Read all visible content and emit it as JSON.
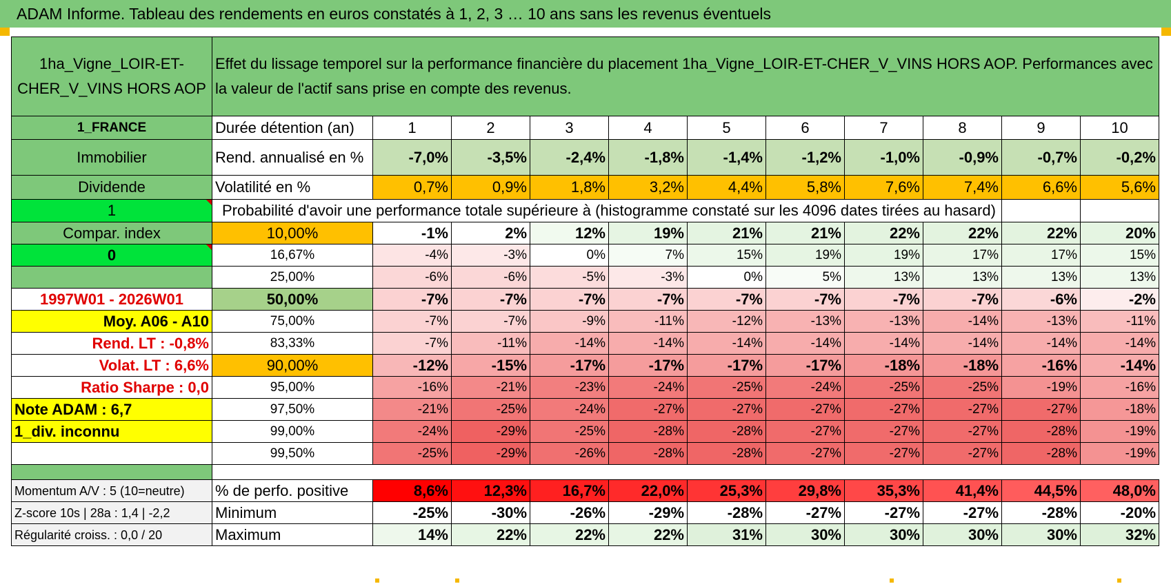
{
  "page_title": "ADAM Informe. Tableau des rendements en euros constatés à 1, 2, 3 … 10 ans sans les revenus éventuels",
  "asset_name": "1ha_Vigne_LOIR-ET-CHER_V_VINS HORS AOP",
  "header_text": "Effet du lissage temporel sur la performance financière du placement 1ha_Vigne_LOIR-ET-CHER_V_VINS HORS AOP. Performances avec la valeur de l'actif sans prise en compte des revenus.",
  "side": {
    "country": "1_FRANCE",
    "category": "Immobilier",
    "income": "Dividende",
    "flag1": "1",
    "compar": "Compar. index",
    "flag0": "0",
    "period": "1997W01 - 2026W01",
    "moy": "Moy. A06 - A10",
    "rend_lt": "Rend. LT :   -0,8%",
    "volat_lt": "Volat. LT :   6,6%",
    "sharpe": "Ratio Sharpe :    0,0",
    "note": "Note ADAM : 6,7",
    "div": "1_div. inconnu"
  },
  "rows": {
    "duration_label": "Durée détention (an)",
    "years": [
      "1",
      "2",
      "3",
      "4",
      "5",
      "6",
      "7",
      "8",
      "9",
      "10"
    ],
    "rend_label": "Rend. annualisé en %",
    "rend": [
      "-7,0%",
      "-3,5%",
      "-2,4%",
      "-1,8%",
      "-1,4%",
      "-1,2%",
      "-1,0%",
      "-0,9%",
      "-0,7%",
      "-0,2%"
    ],
    "vol_label": "Volatilité en %",
    "vol": [
      "0,7%",
      "0,9%",
      "1,8%",
      "3,2%",
      "4,4%",
      "5,8%",
      "7,6%",
      "7,4%",
      "6,6%",
      "5,6%"
    ],
    "prob_title": "Probabilité d'avoir une performance totale supérieure à (histogramme constaté sur les 4096 dates tirées au hasard)"
  },
  "quantiles": [
    {
      "label": "10,00%",
      "values": [
        "-1%",
        "2%",
        "12%",
        "19%",
        "21%",
        "21%",
        "22%",
        "22%",
        "22%",
        "20%"
      ],
      "colors": [
        "#ffffff",
        "#ffffff",
        "#f1faef",
        "#e6f5e3",
        "#e4f4e1",
        "#e4f4e1",
        "#e3f3df",
        "#e3f3df",
        "#e3f3df",
        "#e5f5e2"
      ]
    },
    {
      "label": "16,67%",
      "values": [
        "-4%",
        "-3%",
        "0%",
        "7%",
        "15%",
        "19%",
        "19%",
        "17%",
        "17%",
        "15%"
      ],
      "colors": [
        "#fde4e4",
        "#fde8e8",
        "#ffffff",
        "#f6fcf5",
        "#ecf8ea",
        "#e6f5e3",
        "#e6f5e3",
        "#e9f6e6",
        "#e9f6e6",
        "#ecf8ea"
      ]
    },
    {
      "label": "25,00%",
      "values": [
        "-6%",
        "-6%",
        "-5%",
        "-3%",
        "0%",
        "5%",
        "13%",
        "13%",
        "13%",
        "13%"
      ],
      "colors": [
        "#fbd7d7",
        "#fbd7d7",
        "#fcdcdc",
        "#fde8e8",
        "#ffffff",
        "#f8fcf7",
        "#eef8ec",
        "#eef8ec",
        "#eef8ec",
        "#eef8ec"
      ]
    },
    {
      "label": "50,00%",
      "values": [
        "-7%",
        "-7%",
        "-7%",
        "-7%",
        "-7%",
        "-7%",
        "-7%",
        "-7%",
        "-6%",
        "-2%"
      ],
      "colors": [
        "#fbd2d2",
        "#fbd2d2",
        "#fbd2d2",
        "#fbd2d2",
        "#fbd2d2",
        "#fbd2d2",
        "#fbd2d2",
        "#fbd2d2",
        "#fbd7d7",
        "#fdeded"
      ]
    },
    {
      "label": "75,00%",
      "values": [
        "-7%",
        "-7%",
        "-9%",
        "-11%",
        "-12%",
        "-13%",
        "-13%",
        "-14%",
        "-13%",
        "-11%"
      ],
      "colors": [
        "#fbd2d2",
        "#fbd2d2",
        "#fac6c6",
        "#f9bcbc",
        "#f8b7b7",
        "#f8b2b2",
        "#f8b2b2",
        "#f7acac",
        "#f8b2b2",
        "#f9bcbc"
      ]
    },
    {
      "label": "83,33%",
      "values": [
        "-7%",
        "-11%",
        "-14%",
        "-14%",
        "-14%",
        "-14%",
        "-14%",
        "-14%",
        "-14%",
        "-14%"
      ],
      "colors": [
        "#fbd2d2",
        "#f9bcbc",
        "#f7acac",
        "#f7acac",
        "#f7acac",
        "#f7acac",
        "#f7acac",
        "#f7acac",
        "#f7acac",
        "#f7acac"
      ]
    },
    {
      "label": "90,00%",
      "values": [
        "-12%",
        "-15%",
        "-17%",
        "-17%",
        "-17%",
        "-17%",
        "-18%",
        "-18%",
        "-16%",
        "-14%"
      ],
      "colors": [
        "#f8b7b7",
        "#f7a7a7",
        "#f59c9c",
        "#f59c9c",
        "#f59c9c",
        "#f59c9c",
        "#f59797",
        "#f59797",
        "#f6a2a2",
        "#f7acac"
      ]
    },
    {
      "label": "95,00%",
      "values": [
        "-16%",
        "-21%",
        "-23%",
        "-24%",
        "-25%",
        "-24%",
        "-25%",
        "-25%",
        "-19%",
        "-16%"
      ],
      "colors": [
        "#f6a2a2",
        "#f38989",
        "#f27f7f",
        "#f27a7a",
        "#f17575",
        "#f27a7a",
        "#f17575",
        "#f17575",
        "#f49292",
        "#f6a2a2"
      ]
    },
    {
      "label": "97,50%",
      "values": [
        "-21%",
        "-25%",
        "-24%",
        "-27%",
        "-27%",
        "-27%",
        "-27%",
        "-27%",
        "-27%",
        "-18%"
      ],
      "colors": [
        "#f38989",
        "#f17575",
        "#f27a7a",
        "#f06b6b",
        "#f06b6b",
        "#f06b6b",
        "#f06b6b",
        "#f06b6b",
        "#f06b6b",
        "#f59797"
      ]
    },
    {
      "label": "99,00%",
      "values": [
        "-24%",
        "-29%",
        "-25%",
        "-28%",
        "-28%",
        "-27%",
        "-27%",
        "-27%",
        "-28%",
        "-19%"
      ],
      "colors": [
        "#f27a7a",
        "#ef6161",
        "#f17575",
        "#ef6666",
        "#ef6666",
        "#f06b6b",
        "#f06b6b",
        "#f06b6b",
        "#ef6666",
        "#f49292"
      ]
    },
    {
      "label": "99,50%",
      "values": [
        "-25%",
        "-29%",
        "-26%",
        "-28%",
        "-28%",
        "-27%",
        "-27%",
        "-27%",
        "-28%",
        "-19%"
      ],
      "colors": [
        "#f17575",
        "#ef6161",
        "#f07070",
        "#ef6666",
        "#ef6666",
        "#f06b6b",
        "#f06b6b",
        "#f06b6b",
        "#ef6666",
        "#f49292"
      ]
    }
  ],
  "bottom": {
    "momentum": "Momentum A/V : 5 (10=neutre)",
    "zscore": "Z-score 10s | 28a : 1,4 | -2,2",
    "regularite": "Régularité croiss. : 0,0 / 20",
    "pos_label": "% de perfo. positive",
    "pos": [
      "8,6%",
      "12,3%",
      "16,7%",
      "22,0%",
      "25,3%",
      "29,8%",
      "35,3%",
      "41,4%",
      "44,5%",
      "48,0%"
    ],
    "min_label": "Minimum",
    "min": [
      "-25%",
      "-30%",
      "-26%",
      "-29%",
      "-28%",
      "-27%",
      "-27%",
      "-27%",
      "-28%",
      "-20%"
    ],
    "max_label": "Maximum",
    "max": [
      "14%",
      "22%",
      "22%",
      "22%",
      "31%",
      "30%",
      "30%",
      "30%",
      "30%",
      "32%"
    ]
  },
  "colors": {
    "title_green": "#7ec87a",
    "bright_green": "#00e33a",
    "yellow": "#ffff00",
    "orange": "#ffc000",
    "rend_green": "#c6e0b4",
    "red_text": "#e00000",
    "positive_red": "#ff0000"
  }
}
